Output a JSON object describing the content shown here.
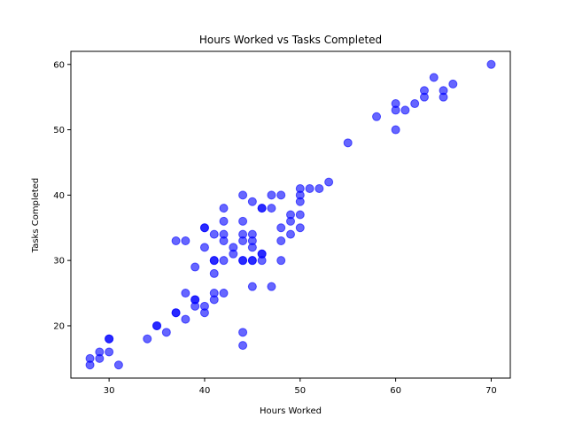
{
  "chart_data": {
    "type": "scatter",
    "title": "Hours Worked vs Tasks Completed",
    "xlabel": "Hours Worked",
    "ylabel": "Tasks Completed",
    "xlim": [
      26,
      72
    ],
    "ylim": [
      12,
      62
    ],
    "xticks": [
      30,
      40,
      50,
      60,
      70
    ],
    "yticks": [
      20,
      30,
      40,
      50,
      60
    ],
    "grid": false,
    "point_color": "#0000ff",
    "point_opacity": 0.6,
    "x": [
      28,
      28,
      29,
      29,
      30,
      30,
      31,
      30,
      34,
      35,
      35,
      36,
      37,
      37,
      37,
      38,
      38,
      38,
      39,
      39,
      39,
      39,
      40,
      40,
      40,
      40,
      40,
      41,
      41,
      41,
      41,
      41,
      41,
      42,
      42,
      42,
      42,
      42,
      42,
      43,
      43,
      44,
      44,
      44,
      44,
      44,
      44,
      44,
      44,
      45,
      45,
      45,
      45,
      45,
      45,
      45,
      46,
      46,
      46,
      46,
      46,
      47,
      47,
      47,
      48,
      48,
      48,
      48,
      49,
      49,
      49,
      50,
      50,
      50,
      50,
      50,
      51,
      52,
      53,
      55,
      58,
      60,
      60,
      60,
      61,
      62,
      63,
      63,
      64,
      65,
      65,
      66,
      70
    ],
    "y": [
      14,
      15,
      15,
      16,
      16,
      18,
      14,
      18,
      18,
      20,
      20,
      19,
      22,
      22,
      33,
      25,
      21,
      33,
      24,
      24,
      23,
      29,
      22,
      23,
      32,
      35,
      35,
      24,
      25,
      28,
      30,
      30,
      34,
      25,
      30,
      33,
      34,
      36,
      38,
      31,
      32,
      17,
      19,
      30,
      33,
      34,
      36,
      40,
      30,
      26,
      30,
      32,
      33,
      34,
      39,
      30,
      30,
      31,
      31,
      38,
      38,
      26,
      38,
      40,
      30,
      33,
      35,
      40,
      34,
      36,
      37,
      35,
      37,
      39,
      40,
      41,
      41,
      41,
      42,
      48,
      52,
      50,
      53,
      54,
      53,
      54,
      55,
      56,
      58,
      55,
      56,
      57,
      60
    ]
  }
}
